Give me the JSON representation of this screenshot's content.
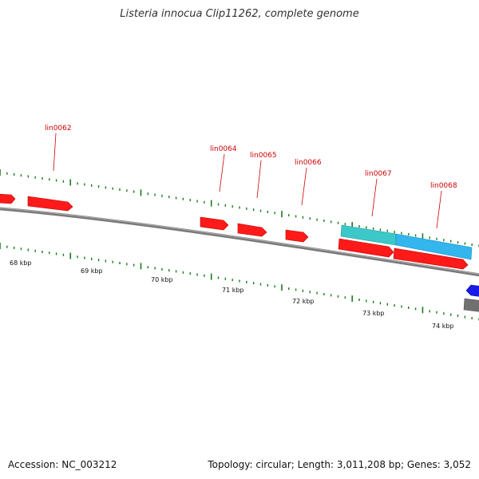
{
  "title": "Listeria innocua Clip11262, complete genome",
  "footer": {
    "accession": "Accession: NC_003212",
    "summary": "Topology: circular; Length: 3,011,208 bp; Genes: 3,052"
  },
  "genes": [
    {
      "label": "lin0062"
    },
    {
      "label": "lin0064"
    },
    {
      "label": "lin0065"
    },
    {
      "label": "lin0066"
    },
    {
      "label": "lin0067"
    },
    {
      "label": "lin0068"
    }
  ],
  "kbp_labels": [
    "68 kbp",
    "69 kbp",
    "70 kbp",
    "71 kbp",
    "72 kbp",
    "73 kbp",
    "74 kbp"
  ],
  "colors": {
    "gene_red": "#ff1a1a",
    "label_red": "#cc0000",
    "tick_green": "#1a7a1a",
    "backbone_gray": "#808080",
    "cyan_feature": "#3cc8c8",
    "blue_feature": "#33b5ee",
    "dark_blue_feature": "#1a1ae6"
  }
}
